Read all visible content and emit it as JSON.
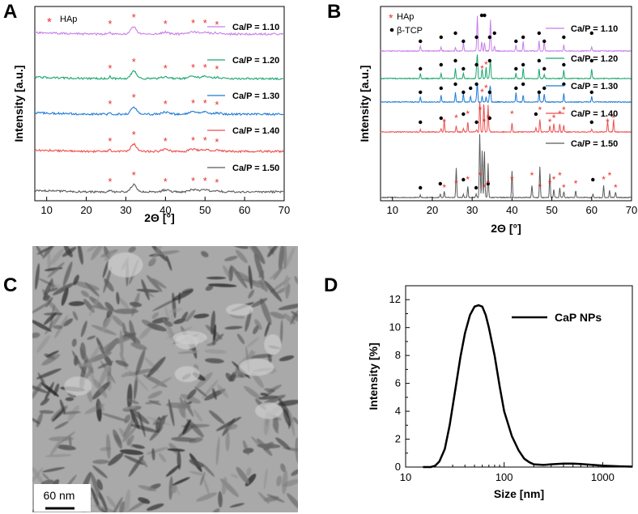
{
  "chart_data": [
    {
      "panel": "A",
      "type": "line",
      "title": "",
      "xlabel": "2Θ [°]",
      "ylabel": "Intensity [a.u.]",
      "xlim": [
        7,
        70
      ],
      "xticks": [
        10,
        20,
        30,
        40,
        50,
        60,
        70
      ],
      "grid": false,
      "legend": "right",
      "marker_legend": [
        {
          "symbol": "*",
          "label": "HAp",
          "color": "#e8302b"
        }
      ],
      "hap_peaks": [
        26,
        32,
        40,
        47,
        50,
        53
      ],
      "series": [
        {
          "name": "Ca/P = 1.10",
          "color": "#c77ee8",
          "offset": 4,
          "peaks": [
            26,
            32,
            40,
            47,
            50,
            53
          ]
        },
        {
          "name": "Ca/P = 1.20",
          "color": "#1aa66e",
          "offset": 3,
          "peaks": [
            26,
            32,
            40,
            47,
            50,
            53
          ]
        },
        {
          "name": "Ca/P = 1.30",
          "color": "#1e7ad6",
          "offset": 2,
          "peaks": [
            26,
            32,
            40,
            47,
            50,
            53
          ]
        },
        {
          "name": "Ca/P = 1.40",
          "color": "#ef4d4d",
          "offset": 1,
          "peaks": [
            26,
            32,
            40,
            47,
            50,
            53
          ]
        },
        {
          "name": "Ca/P = 1.50",
          "color": "#5a5a5a",
          "offset": 0,
          "peaks": [
            26,
            32,
            40,
            47,
            50,
            53
          ]
        }
      ]
    },
    {
      "panel": "B",
      "type": "line",
      "title": "",
      "xlabel": "2Θ [°]",
      "ylabel": "Intensity [a.u.]",
      "xlim": [
        7,
        70
      ],
      "xticks": [
        10,
        20,
        30,
        40,
        50,
        60,
        70
      ],
      "grid": false,
      "legend": "right",
      "marker_legend": [
        {
          "symbol": "*",
          "label": "HAp",
          "color": "#e8302b"
        },
        {
          "symbol": "●",
          "label": "β-TCP",
          "color": "#000000"
        }
      ],
      "series": [
        {
          "name": "Ca/P = 1.10",
          "color": "#c77ee8",
          "offset": 4,
          "tcp_peaks": [
            17,
            22.2,
            25.8,
            27.8,
            31.1,
            32.4,
            33.1,
            34.4,
            35.6,
            41.0,
            42.8,
            46.8,
            48.1,
            53.0,
            60.0
          ]
        },
        {
          "name": "Ca/P = 1.20",
          "color": "#1aa66e",
          "offset": 3,
          "tcp_peaks": [
            17,
            22.2,
            25.8,
            27.8,
            31.1,
            34.4,
            41.0,
            42.8,
            46.8,
            48.1,
            53.0,
            60.0
          ],
          "hap_peaks": [
            32.5,
            33.5
          ]
        },
        {
          "name": "Ca/P = 1.30",
          "color": "#1e7ad6",
          "offset": 2,
          "tcp_peaks": [
            17,
            22.2,
            25.8,
            27.8,
            29.6,
            31.1,
            34.4,
            41.0,
            42.8,
            46.8,
            48.1,
            53.0,
            60.0
          ],
          "hap_peaks": [
            32.5,
            33.5
          ]
        },
        {
          "name": "Ca/P = 1.40",
          "color": "#ef4d4d",
          "offset": 1,
          "tcp_peaks": [
            17,
            22.2,
            27.8,
            31.1,
            34.4,
            46.0,
            60.0
          ],
          "hap_peaks": [
            23,
            26,
            28.9,
            32,
            33,
            34,
            40,
            47,
            49.5,
            50.5,
            52,
            53,
            64,
            65.5
          ]
        },
        {
          "name": "Ca/P = 1.50",
          "color": "#5a5a5a",
          "offset": 0,
          "tcp_peaks": [
            17,
            22,
            27.8,
            31,
            34,
            60.3
          ],
          "hap_peaks": [
            23,
            26,
            28.9,
            32,
            33,
            34,
            40,
            45,
            47,
            49.5,
            50.5,
            52,
            53,
            56,
            63,
            64.5,
            66
          ]
        }
      ]
    },
    {
      "panel": "D",
      "type": "line",
      "title": "",
      "xlabel": "Size [nm]",
      "ylabel": "Intensity [%]",
      "xscale": "log",
      "xlim": [
        10,
        2000
      ],
      "ylim": [
        0,
        13
      ],
      "xticks": [
        10,
        100,
        1000
      ],
      "yticks": [
        0,
        2,
        4,
        6,
        8,
        10,
        12
      ],
      "grid": false,
      "legend": "top-right",
      "series": [
        {
          "name": "CaP NPs",
          "color": "#000000",
          "x": [
            15,
            18,
            20,
            22,
            25,
            28,
            32,
            36,
            40,
            45,
            50,
            55,
            60,
            65,
            70,
            80,
            90,
            100,
            120,
            140,
            160,
            180,
            200,
            250,
            300,
            400,
            500,
            600,
            800,
            1000,
            1500,
            2000
          ],
          "y": [
            0,
            0,
            0.1,
            0.4,
            1.3,
            3.0,
            5.6,
            7.9,
            9.6,
            10.9,
            11.5,
            11.6,
            11.5,
            10.9,
            10.0,
            8.0,
            5.8,
            4.0,
            2.2,
            1.2,
            0.6,
            0.35,
            0.2,
            0.15,
            0.2,
            0.25,
            0.25,
            0.22,
            0.15,
            0.1,
            0.05,
            0.03
          ]
        }
      ]
    }
  ],
  "panels": {
    "a": {
      "label": "A"
    },
    "b": {
      "label": "B"
    },
    "c": {
      "label": "C",
      "scale_bar": "60 nm"
    },
    "d": {
      "label": "D"
    }
  }
}
